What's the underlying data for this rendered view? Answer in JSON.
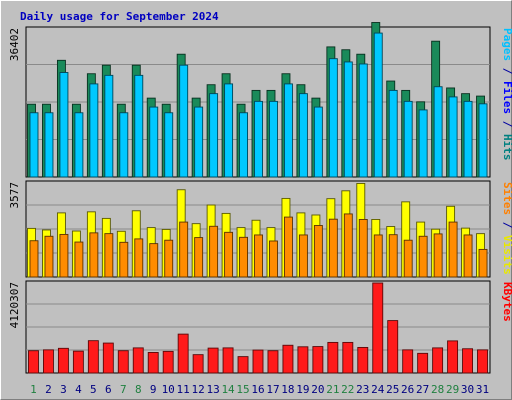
{
  "chart_data": {
    "type": "bar",
    "title": "Daily usage for September 2024",
    "days": [
      1,
      2,
      3,
      4,
      5,
      6,
      7,
      8,
      9,
      10,
      11,
      12,
      13,
      14,
      15,
      16,
      17,
      18,
      19,
      20,
      21,
      22,
      23,
      24,
      25,
      26,
      27,
      28,
      29,
      30,
      31
    ],
    "weekend_days": [
      1,
      7,
      8,
      14,
      15,
      21,
      22,
      28,
      29
    ],
    "panels": [
      {
        "id": "hits-files-pages",
        "ymax_label": "36402",
        "ymax": 36402,
        "legend": [
          {
            "text": "Pages",
            "color": "#00c0ff"
          },
          {
            "text": " / ",
            "color": "#0000a0"
          },
          {
            "text": "Files",
            "color": "#0000ff"
          },
          {
            "text": " / ",
            "color": "#0000a0"
          },
          {
            "text": "Hits",
            "color": "#008080"
          }
        ],
        "series": [
          {
            "name": "Hits",
            "color": "#1a8a5a",
            "values": [
              17900,
              17900,
              28700,
              17900,
              25400,
              27500,
              17900,
              27500,
              19400,
              17900,
              30200,
              19400,
              22700,
              25400,
              17900,
              21300,
              21300,
              25400,
              22700,
              19400,
              32000,
              31300,
              30200,
              38000,
              23600,
              21300,
              18500,
              33400,
              21900,
              20500,
              19900
            ]
          },
          {
            "name": "Files",
            "color": "#00c8ff",
            "values": [
              15800,
              15800,
              25700,
              15800,
              22900,
              25000,
              15800,
              25000,
              17200,
              15800,
              27500,
              17200,
              20500,
              22900,
              15800,
              18600,
              18600,
              22900,
              20500,
              17200,
              29100,
              28300,
              27800,
              35400,
              21300,
              18600,
              16500,
              22200,
              19700,
              18600,
              18000
            ]
          }
        ]
      },
      {
        "id": "visits-sites",
        "ymax_label": "3577",
        "ymax": 3577,
        "legend": [
          {
            "text": "Sites",
            "color": "#ff8000"
          },
          {
            "text": " / ",
            "color": "#0000a0"
          },
          {
            "text": "Visits",
            "color": "#e8e800"
          }
        ],
        "series": [
          {
            "name": "Visits",
            "color": "#ffff00",
            "values": [
              1850,
              1790,
              2440,
              1750,
              2480,
              2230,
              1740,
              2520,
              1880,
              1810,
              3320,
              2030,
              2740,
              2420,
              1880,
              2160,
              1880,
              2990,
              2440,
              2360,
              2980,
              3280,
              3560,
              2190,
              1920,
              2860,
              2090,
              1820,
              2690,
              1860,
              1650
            ]
          },
          {
            "name": "Sites",
            "color": "#ff8c00",
            "values": [
              1380,
              1550,
              1620,
              1330,
              1680,
              1650,
              1320,
              1450,
              1270,
              1400,
              2090,
              1500,
              1930,
              1700,
              1510,
              1600,
              1370,
              2280,
              1600,
              1960,
              2200,
              2400,
              2190,
              1600,
              1610,
              1400,
              1550,
              1640,
              2090,
              1600,
              1050
            ]
          }
        ]
      },
      {
        "id": "kbytes",
        "ymax_label": "4120307",
        "ymax": 4120307,
        "legend": [
          {
            "text": "KBytes",
            "color": "#ff0000"
          }
        ],
        "series": [
          {
            "name": "KBytes",
            "color": "#ff1a1a",
            "values": [
              1020000,
              1060000,
              1130000,
              1000000,
              1480000,
              1370000,
              1020000,
              1150000,
              940000,
              990000,
              1780000,
              840000,
              1140000,
              1150000,
              750000,
              1050000,
              1020000,
              1270000,
              1200000,
              1210000,
              1400000,
              1400000,
              1170000,
              4120000,
              2400000,
              1060000,
              900000,
              1150000,
              1470000,
              1110000,
              1060000
            ]
          }
        ]
      }
    ]
  }
}
